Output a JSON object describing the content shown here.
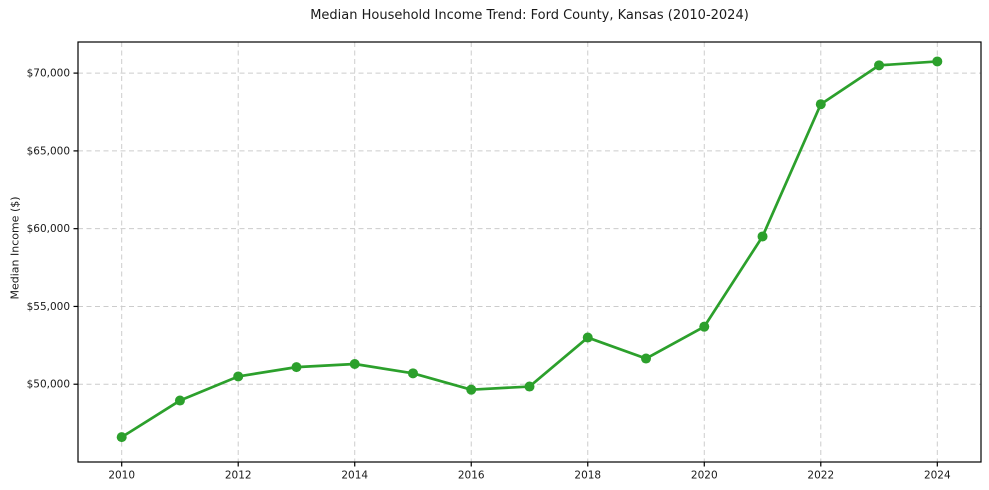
{
  "chart_data": {
    "type": "line",
    "title": "Median Household Income Trend: Ford County, Kansas (2010-2024)",
    "xlabel": "",
    "ylabel": "Median Income ($)",
    "series": [
      {
        "name": "Median household income",
        "x": [
          2010,
          2011,
          2012,
          2013,
          2014,
          2015,
          2016,
          2017,
          2018,
          2019,
          2020,
          2021,
          2022,
          2023,
          2024
        ],
        "values": [
          46600,
          48950,
          50500,
          51100,
          51300,
          50700,
          49650,
          49850,
          53000,
          51650,
          53700,
          59500,
          68000,
          70500,
          70750
        ]
      }
    ],
    "xlim": [
      2009.25,
      2024.75
    ],
    "ylim": [
      45000,
      72000
    ],
    "xticks": [
      2010,
      2012,
      2014,
      2016,
      2018,
      2020,
      2022,
      2024
    ],
    "xtick_labels": [
      "2010",
      "2012",
      "2014",
      "2016",
      "2018",
      "2020",
      "2022",
      "2024"
    ],
    "yticks": [
      50000,
      55000,
      60000,
      65000,
      70000
    ],
    "ytick_labels": [
      "$50,000",
      "$55,000",
      "$60,000",
      "$65,000",
      "$70,000"
    ],
    "grid": true,
    "grid_style": "dashed",
    "legend": false,
    "marker": "circle",
    "colors": {
      "line": "#2ca02c",
      "marker": "#2ca02c",
      "grid": "#cccccc",
      "spine": "#000000",
      "text": "#1a1a1a",
      "background": "#ffffff"
    }
  }
}
